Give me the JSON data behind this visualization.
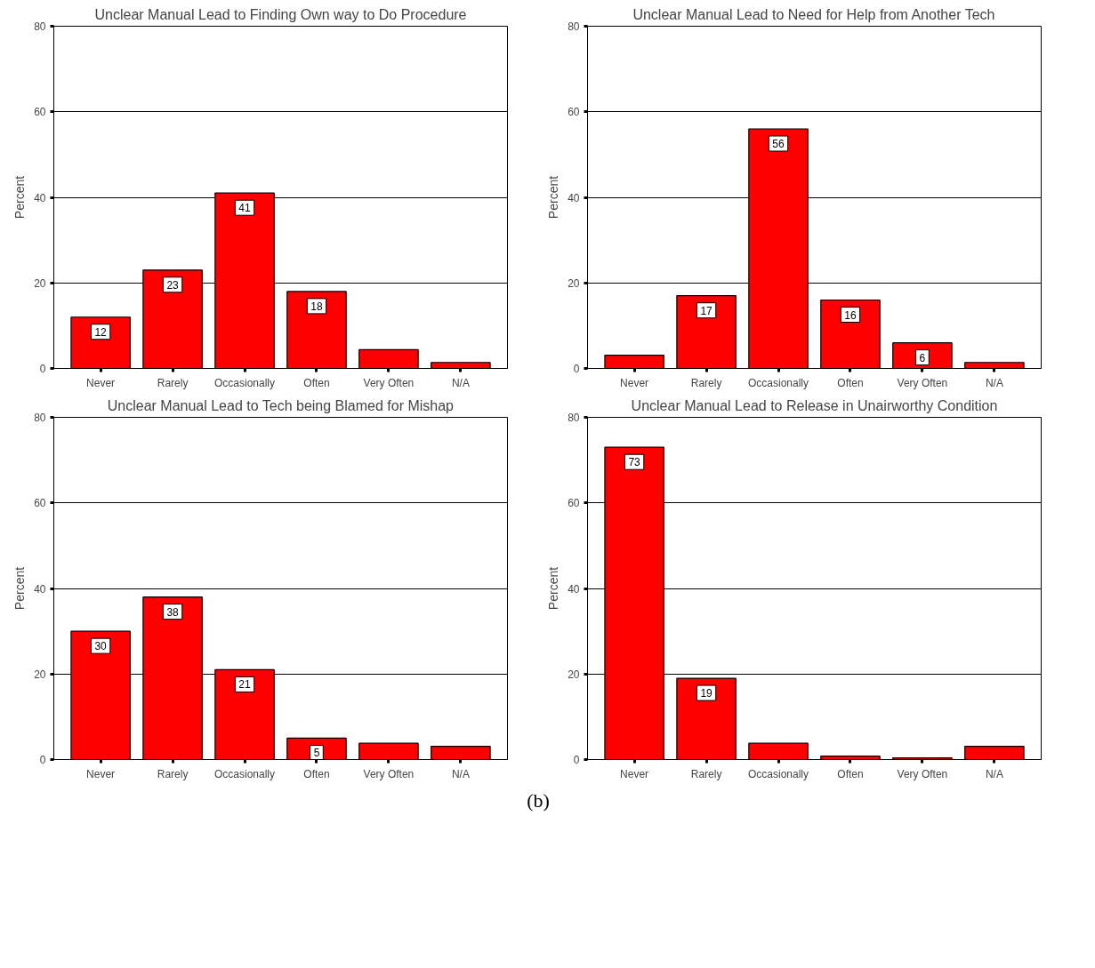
{
  "chart_data": [
    {
      "type": "bar",
      "title": "Unclear Manual Lead to Finding Own way to Do Procedure",
      "ylabel": "Percent",
      "categories": [
        "Never",
        "Rarely",
        "Occasionally",
        "Often",
        "Very Often",
        "N/A"
      ],
      "values": [
        12,
        23,
        41,
        18,
        4.4,
        1.4
      ],
      "value_labels": [
        "12",
        "23",
        "41",
        "18",
        null,
        null
      ],
      "color": "#ff0000",
      "ylim": [
        0,
        80
      ],
      "yticks": [
        0,
        20,
        40,
        60,
        80
      ],
      "grid": "y"
    },
    {
      "type": "bar",
      "title": "Unclear Manual Lead to Need for Help from Another Tech",
      "ylabel": "Percent",
      "categories": [
        "Never",
        "Rarely",
        "Occasionally",
        "Often",
        "Very Often",
        "N/A"
      ],
      "values": [
        3.1,
        17,
        56,
        16,
        6,
        1.4
      ],
      "value_labels": [
        null,
        "17",
        "56",
        "16",
        "6",
        null
      ],
      "color": "#ff0000",
      "ylim": [
        0,
        80
      ],
      "yticks": [
        0,
        20,
        40,
        60,
        80
      ],
      "grid": "y"
    },
    {
      "type": "bar",
      "title": "Unclear Manual Lead to Tech being Blamed for Mishap",
      "ylabel": "Percent",
      "categories": [
        "Never",
        "Rarely",
        "Occasionally",
        "Often",
        "Very Often",
        "N/A"
      ],
      "values": [
        30,
        38,
        21,
        5,
        3.8,
        3.1
      ],
      "value_labels": [
        "30",
        "38",
        "21",
        "5",
        null,
        null
      ],
      "color": "#ff0000",
      "ylim": [
        0,
        80
      ],
      "yticks": [
        0,
        20,
        40,
        60,
        80
      ],
      "grid": "y"
    },
    {
      "type": "bar",
      "title": "Unclear Manual Lead to Release in Unairworthy Condition",
      "ylabel": "Percent",
      "categories": [
        "Never",
        "Rarely",
        "Occasionally",
        "Often",
        "Very Often",
        "N/A"
      ],
      "values": [
        73,
        19,
        3.8,
        0.8,
        0.4,
        3.1
      ],
      "value_labels": [
        "73",
        "19",
        null,
        null,
        null,
        null
      ],
      "color": "#ff0000",
      "ylim": [
        0,
        80
      ],
      "yticks": [
        0,
        20,
        40,
        60,
        80
      ],
      "grid": "y",
      "annotations": [
        "(b)"
      ]
    }
  ]
}
